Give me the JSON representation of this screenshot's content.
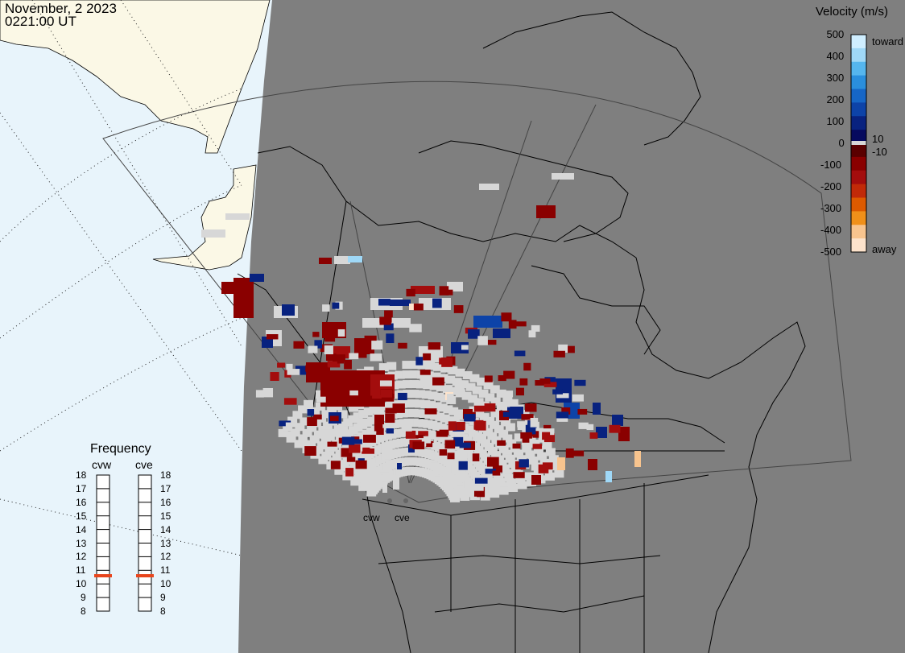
{
  "header": {
    "date": "November, 2 2023",
    "time": "0221:00 UT"
  },
  "colorbar": {
    "title": "Velocity (m/s)",
    "ticks": [
      "500",
      "400",
      "300",
      "200",
      "100",
      "0",
      "-100",
      "-200",
      "-300",
      "-400",
      "-500"
    ],
    "inner_ticks": [
      "10",
      "-10"
    ],
    "toward_label": "toward",
    "away_label": "away",
    "colors": [
      "#cfeeff",
      "#9fd8f7",
      "#55b6ee",
      "#2a8fdd",
      "#1666c6",
      "#0d43a8",
      "#08227f",
      "#060a5e",
      "#5a0000",
      "#8a0000",
      "#a30d0d",
      "#c12a08",
      "#dd5a00",
      "#f0901a",
      "#f8c48e",
      "#fde3cc"
    ]
  },
  "frequency": {
    "title": "Frequency",
    "radars": [
      {
        "name": "cvw",
        "value": 10.6
      },
      {
        "name": "cve",
        "value": 10.6
      }
    ],
    "ticks": [
      "18",
      "17",
      "16",
      "15",
      "14",
      "13",
      "12",
      "11",
      "10",
      "9",
      "8"
    ]
  },
  "sites": [
    {
      "name": "cvw"
    },
    {
      "name": "cve"
    }
  ],
  "map_colors": {
    "ocean": "#e8f4fb",
    "land_unlit": "#fbf8e6",
    "night": "#7f7f7f",
    "ground_scatter": "#d7d7d7",
    "coast": "#000000"
  }
}
